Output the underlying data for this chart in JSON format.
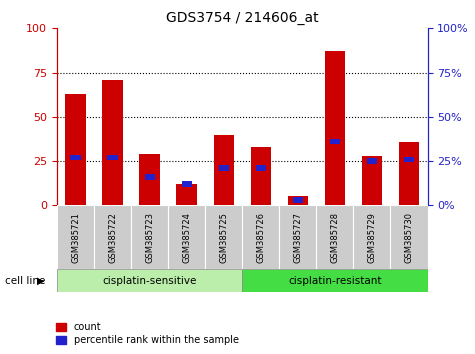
{
  "title": "GDS3754 / 214606_at",
  "samples": [
    "GSM385721",
    "GSM385722",
    "GSM385723",
    "GSM385724",
    "GSM385725",
    "GSM385726",
    "GSM385727",
    "GSM385728",
    "GSM385729",
    "GSM385730"
  ],
  "count_values": [
    63,
    71,
    29,
    12,
    40,
    33,
    5,
    87,
    28,
    36
  ],
  "percentile_values": [
    27,
    27,
    16,
    12,
    21,
    21,
    3,
    36,
    25,
    26
  ],
  "bar_color_red": "#cc0000",
  "bar_color_blue": "#2222cc",
  "ylim": [
    0,
    100
  ],
  "yticks": [
    0,
    25,
    50,
    75,
    100
  ],
  "cell_line_label": "cell line",
  "group1_label": "cisplatin-sensitive",
  "group2_label": "cisplatin-resistant",
  "group1_color": "#bbeeaa",
  "group2_color": "#44dd44",
  "group1_samples": [
    0,
    1,
    2,
    3,
    4
  ],
  "group2_samples": [
    5,
    6,
    7,
    8,
    9
  ],
  "legend_count": "count",
  "legend_pct": "percentile rank within the sample",
  "bar_width": 0.55
}
